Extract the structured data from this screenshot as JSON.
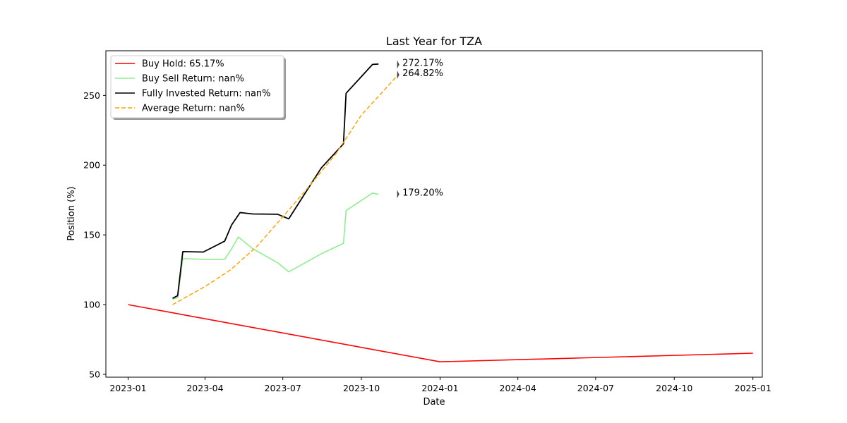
{
  "chart_data": {
    "type": "line",
    "title": "Last Year for TZA",
    "xlabel": "Date",
    "ylabel": "Position (%)",
    "xlim": [
      "2022-12-06",
      "2025-01-12"
    ],
    "ylim": [
      48,
      282
    ],
    "x_ticks": [
      "2023-01",
      "2023-04",
      "2023-07",
      "2023-10",
      "2024-01",
      "2024-04",
      "2024-07",
      "2024-10",
      "2025-01"
    ],
    "y_ticks": [
      50,
      100,
      150,
      200,
      250
    ],
    "grid": false,
    "legend_position": "upper left",
    "series": [
      {
        "name": "Buy Hold: 65.17%",
        "color": "#ff0000",
        "style": "solid",
        "points": [
          [
            "2023-01-01",
            100
          ],
          [
            "2024-01-01",
            59
          ],
          [
            "2025-01-01",
            65.17
          ]
        ]
      },
      {
        "name": "Buy Sell Return: nan%",
        "color": "#90ee90",
        "style": "solid",
        "points": [
          [
            "2023-02-22",
            104
          ],
          [
            "2023-02-28",
            105
          ],
          [
            "2023-03-06",
            133
          ],
          [
            "2023-03-30",
            132.5
          ],
          [
            "2023-04-24",
            132.5
          ],
          [
            "2023-05-02",
            140
          ],
          [
            "2023-05-10",
            148.5
          ],
          [
            "2023-05-27",
            140
          ],
          [
            "2023-06-25",
            130
          ],
          [
            "2023-07-08",
            123.5
          ],
          [
            "2023-08-15",
            136.5
          ],
          [
            "2023-09-10",
            144
          ],
          [
            "2023-09-13",
            167.5
          ],
          [
            "2023-10-14",
            180
          ],
          [
            "2023-10-21",
            179
          ]
        ]
      },
      {
        "name": "Fully Invested Return: nan%",
        "color": "#000000",
        "style": "solid",
        "points": [
          [
            "2023-02-22",
            104.5
          ],
          [
            "2023-02-28",
            106.5
          ],
          [
            "2023-03-06",
            138
          ],
          [
            "2023-03-30",
            137.7
          ],
          [
            "2023-04-24",
            145.5
          ],
          [
            "2023-05-02",
            157
          ],
          [
            "2023-05-12",
            166
          ],
          [
            "2023-05-27",
            165
          ],
          [
            "2023-06-25",
            164.8
          ],
          [
            "2023-07-08",
            161.5
          ],
          [
            "2023-08-15",
            198
          ],
          [
            "2023-09-10",
            215.3
          ],
          [
            "2023-09-13",
            251.5
          ],
          [
            "2023-10-14",
            272.2
          ],
          [
            "2023-10-21",
            272.5
          ]
        ]
      },
      {
        "name": "Average Return: nan%",
        "color": "#ffa500",
        "style": "dashed",
        "points": [
          [
            "2023-02-22",
            100
          ],
          [
            "2023-04-01",
            113
          ],
          [
            "2023-05-01",
            125
          ],
          [
            "2023-06-01",
            142
          ],
          [
            "2023-07-01",
            163
          ],
          [
            "2023-08-01",
            185
          ],
          [
            "2023-09-01",
            208
          ],
          [
            "2023-10-01",
            236
          ],
          [
            "2023-11-13",
            264.82
          ]
        ]
      }
    ],
    "annotations": [
      {
        "text": "272.17%",
        "x": "2023-11-13",
        "y": 272.17
      },
      {
        "text": "264.82%",
        "x": "2023-11-13",
        "y": 264.82
      },
      {
        "text": "179.20%",
        "x": "2023-11-13",
        "y": 179.2
      }
    ]
  }
}
